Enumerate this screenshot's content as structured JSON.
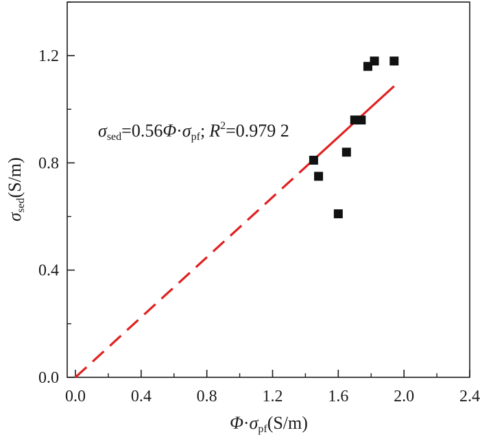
{
  "chart_data": {
    "type": "scatter",
    "title": "",
    "x_axis": {
      "label": {
        "symbol": "Φ",
        "dot": "·",
        "sigma": "σ",
        "sub": "pf",
        "unit": "(S/m)"
      },
      "range": [
        -0.05,
        2.4
      ],
      "ticks": [
        "0.0",
        "0.4",
        "0.8",
        "1.2",
        "1.6",
        "2.0",
        "2.4"
      ],
      "tick_values": [
        0.0,
        0.4,
        0.8,
        1.2,
        1.6,
        2.0,
        2.4
      ]
    },
    "y_axis": {
      "label": {
        "sigma": "σ",
        "sub": "sed",
        "unit": "(S/m)"
      },
      "range": [
        0.0,
        1.4
      ],
      "ticks": [
        "0.0",
        "0.4",
        "0.8",
        "1.2"
      ],
      "tick_values": [
        0.0,
        0.4,
        0.8,
        1.2
      ]
    },
    "grid": false,
    "series": [
      {
        "marker": "square",
        "color": "#111111",
        "x": [
          1.45,
          1.48,
          1.6,
          1.65,
          1.7,
          1.74,
          1.78,
          1.82,
          1.94
        ],
        "y": [
          0.81,
          0.75,
          0.61,
          0.84,
          0.96,
          0.96,
          1.16,
          1.18,
          1.18
        ]
      }
    ],
    "fit_line": {
      "slope": 0.56,
      "color": "#e02020",
      "dashed_x_range": [
        0.0,
        1.44
      ],
      "solid_x_range": [
        1.44,
        1.94
      ]
    },
    "annotation": {
      "sigma": "σ",
      "sub1": "sed",
      "mid": "=0.56",
      "phi": "Φ",
      "dot": "·",
      "sigma2": "σ",
      "sub2": "pf",
      "sep": ";",
      "r": "R",
      "sup": "2",
      "r2_value": "=0.979 2"
    }
  }
}
